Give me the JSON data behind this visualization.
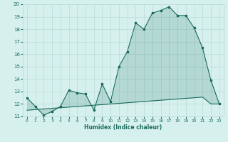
{
  "xlabel": "Humidex (Indice chaleur)",
  "x_values": [
    0,
    1,
    2,
    3,
    4,
    5,
    6,
    7,
    8,
    9,
    10,
    11,
    12,
    13,
    14,
    15,
    16,
    17,
    18,
    19,
    20,
    21,
    22,
    23
  ],
  "line1_y": [
    12.5,
    11.8,
    11.1,
    11.4,
    11.8,
    13.1,
    12.9,
    12.8,
    11.5,
    13.6,
    12.2,
    15.0,
    16.2,
    18.5,
    18.0,
    19.3,
    19.5,
    19.8,
    19.1,
    19.1,
    18.1,
    16.5,
    13.9,
    12.0
  ],
  "line2_y": [
    11.5,
    11.55,
    11.6,
    11.65,
    11.7,
    11.75,
    11.8,
    11.85,
    11.9,
    11.95,
    12.0,
    12.05,
    12.1,
    12.15,
    12.2,
    12.25,
    12.3,
    12.35,
    12.4,
    12.45,
    12.5,
    12.55,
    12.0,
    12.0
  ],
  "line_color": "#1a6b5e",
  "bg_color": "#d6f0ee",
  "grid_color": "#c0ddd9",
  "ylim": [
    11,
    20
  ],
  "xlim": [
    -0.5,
    23.5
  ],
  "yticks": [
    11,
    12,
    13,
    14,
    15,
    16,
    17,
    18,
    19,
    20
  ],
  "xticks": [
    0,
    1,
    2,
    3,
    4,
    5,
    6,
    7,
    8,
    9,
    10,
    11,
    12,
    13,
    14,
    15,
    16,
    17,
    18,
    19,
    20,
    21,
    22,
    23
  ]
}
